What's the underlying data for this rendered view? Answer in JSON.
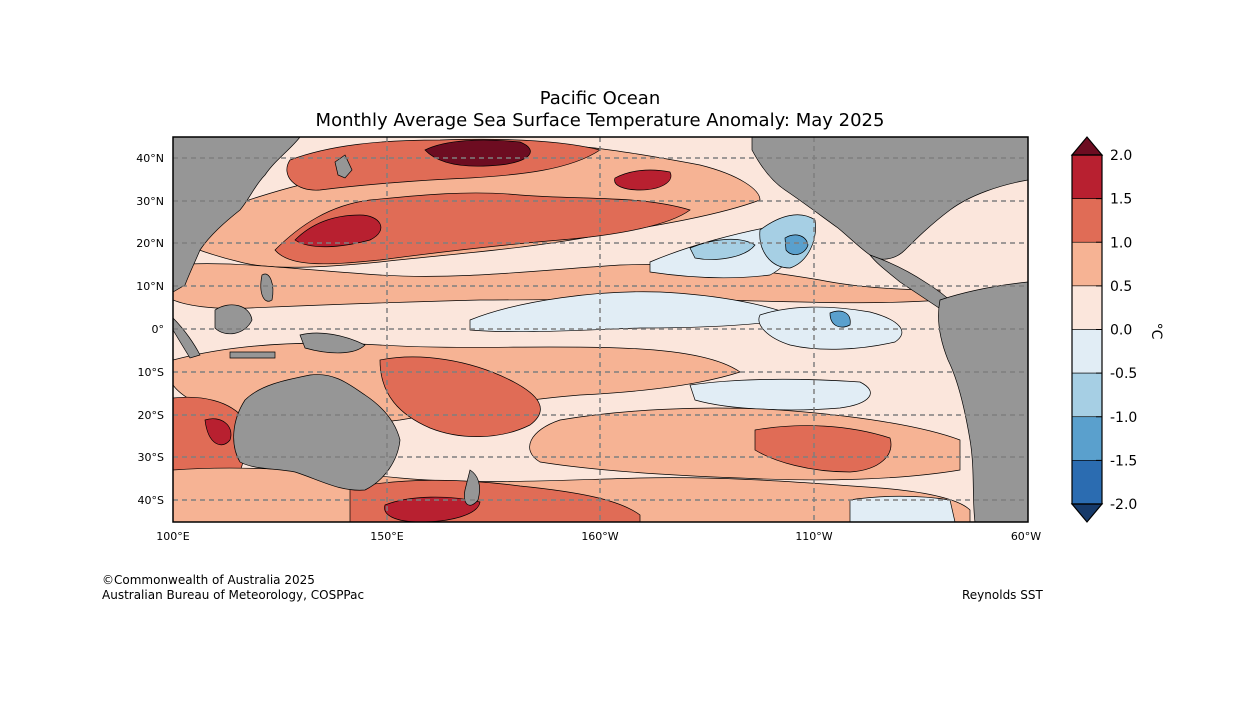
{
  "title": "Pacific Ocean",
  "subtitle": "Monthly Average Sea Surface Temperature Anomaly: May 2025",
  "longitude_labels": [
    "100°E",
    "150°E",
    "160°W",
    "110°W",
    "60°W"
  ],
  "latitude_labels": [
    "40°N",
    "30°N",
    "20°N",
    "10°N",
    "0°",
    "10°S",
    "20°S",
    "30°S",
    "40°S"
  ],
  "colorbar": {
    "unit": "°C",
    "tick_labels": [
      "2.0",
      "1.5",
      "1.0",
      "0.5",
      "0.0",
      "-0.5",
      "-1.0",
      "-1.5",
      "-2.0"
    ],
    "bins": [
      {
        "range": [
          1.5,
          2.0
        ],
        "color": "#b82030"
      },
      {
        "range": [
          1.0,
          1.5
        ],
        "color": "#e06c56"
      },
      {
        "range": [
          0.5,
          1.0
        ],
        "color": "#f6b394"
      },
      {
        "range": [
          0.0,
          0.5
        ],
        "color": "#fbe6dc"
      },
      {
        "range": [
          -0.5,
          0.0
        ],
        "color": "#e1edf5"
      },
      {
        "range": [
          -1.0,
          -0.5
        ],
        "color": "#a6cfe4"
      },
      {
        "range": [
          -1.5,
          -1.0
        ],
        "color": "#5aa0cd"
      },
      {
        "range": [
          -2.0,
          -1.5
        ],
        "color": "#2b6cb1"
      }
    ],
    "over_color": "#6d0c21",
    "under_color": "#163a6a"
  },
  "colors": {
    "land": "#969696",
    "gridline": "#7f7f7f",
    "frame": "#000000"
  },
  "footer": {
    "copyright": "©Commonwealth of Australia 2025",
    "agency": "Australian Bureau of Meteorology, COSPPac",
    "source": "Reynolds SST"
  }
}
